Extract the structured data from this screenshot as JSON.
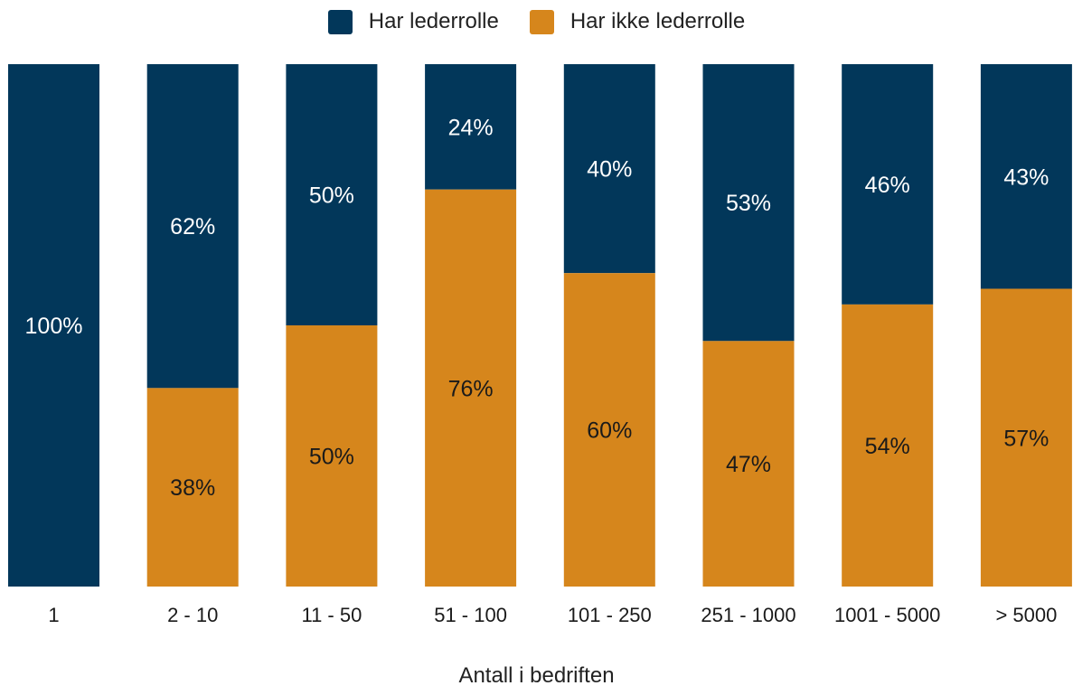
{
  "chart_data": {
    "type": "bar",
    "stacked": true,
    "categories": [
      "1",
      "2 - 10",
      "11 - 50",
      "51 - 100",
      "101 - 250",
      "251 - 1000",
      "1001 - 5000",
      "> 5000"
    ],
    "series": [
      {
        "name": "Har lederrolle",
        "color": "#02375a",
        "values": [
          100,
          62,
          50,
          24,
          40,
          53,
          46,
          43
        ],
        "labels": [
          "100%",
          "62%",
          "50%",
          "24%",
          "40%",
          "53%",
          "46%",
          "43%"
        ]
      },
      {
        "name": "Har ikke lederrolle",
        "color": "#d6861c",
        "values": [
          0,
          38,
          50,
          76,
          60,
          47,
          54,
          57
        ],
        "labels": [
          "",
          "38%",
          "50%",
          "76%",
          "60%",
          "47%",
          "54%",
          "57%"
        ]
      }
    ],
    "title": "",
    "xlabel": "Antall i bedriften",
    "ylabel": "",
    "ylim": [
      0,
      100
    ],
    "legend": "top-center",
    "grid": false
  }
}
